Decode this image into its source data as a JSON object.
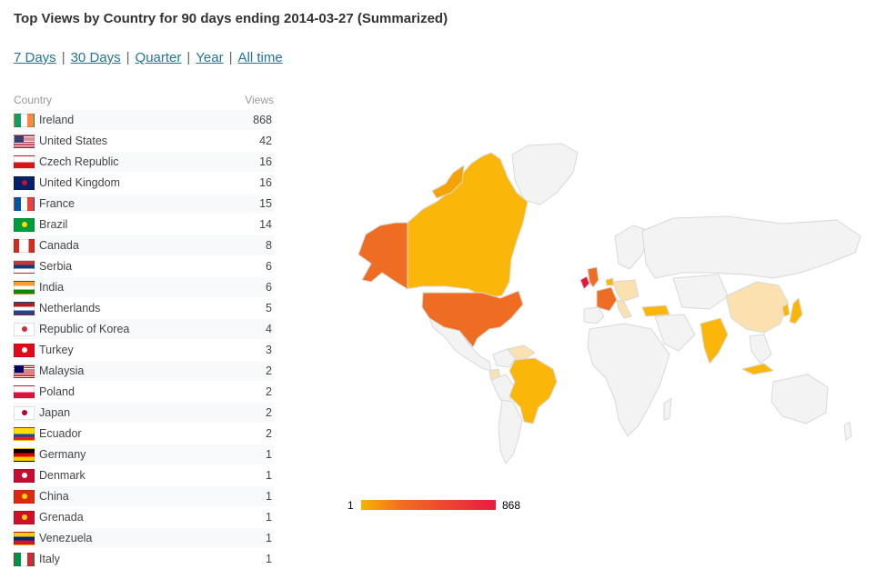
{
  "page": {
    "title": "Top Views by Country for 90 days ending 2014-03-27 (Summarized)"
  },
  "periods": [
    {
      "label": "7 Days"
    },
    {
      "label": "30 Days"
    },
    {
      "label": "Quarter"
    },
    {
      "label": "Year"
    },
    {
      "label": "All time"
    }
  ],
  "table": {
    "col_country": "Country",
    "col_views": "Views",
    "rows": [
      {
        "country": "Ireland",
        "views": "868",
        "flag": "ireland-flag-icon"
      },
      {
        "country": "United States",
        "views": "42",
        "flag": "united-states-flag-icon"
      },
      {
        "country": "Czech Republic",
        "views": "16",
        "flag": "czech-republic-flag-icon"
      },
      {
        "country": "United Kingdom",
        "views": "16",
        "flag": "united-kingdom-flag-icon"
      },
      {
        "country": "France",
        "views": "15",
        "flag": "france-flag-icon"
      },
      {
        "country": "Brazil",
        "views": "14",
        "flag": "brazil-flag-icon"
      },
      {
        "country": "Canada",
        "views": "8",
        "flag": "canada-flag-icon"
      },
      {
        "country": "Serbia",
        "views": "6",
        "flag": "serbia-flag-icon"
      },
      {
        "country": "India",
        "views": "6",
        "flag": "india-flag-icon"
      },
      {
        "country": "Netherlands",
        "views": "5",
        "flag": "netherlands-flag-icon"
      },
      {
        "country": "Republic of Korea",
        "views": "4",
        "flag": "korea-flag-icon"
      },
      {
        "country": "Turkey",
        "views": "3",
        "flag": "turkey-flag-icon"
      },
      {
        "country": "Malaysia",
        "views": "2",
        "flag": "malaysia-flag-icon"
      },
      {
        "country": "Poland",
        "views": "2",
        "flag": "poland-flag-icon"
      },
      {
        "country": "Japan",
        "views": "2",
        "flag": "japan-flag-icon"
      },
      {
        "country": "Ecuador",
        "views": "2",
        "flag": "ecuador-flag-icon"
      },
      {
        "country": "Germany",
        "views": "1",
        "flag": "germany-flag-icon"
      },
      {
        "country": "Denmark",
        "views": "1",
        "flag": "denmark-flag-icon"
      },
      {
        "country": "China",
        "views": "1",
        "flag": "china-flag-icon"
      },
      {
        "country": "Grenada",
        "views": "1",
        "flag": "grenada-flag-icon"
      },
      {
        "country": "Venezuela",
        "views": "1",
        "flag": "venezuela-flag-icon"
      },
      {
        "country": "Italy",
        "views": "1",
        "flag": "italy-flag-icon"
      }
    ]
  },
  "map": {
    "legend_min": "1",
    "legend_max": "868",
    "colors": {
      "land": "#f3f3f3",
      "border": "#d5d5d5",
      "low": "#fce1b0",
      "mid": "#fbb60a",
      "high": "#f4a300",
      "orange": "#ef6d22",
      "max": "#e8153f"
    }
  }
}
